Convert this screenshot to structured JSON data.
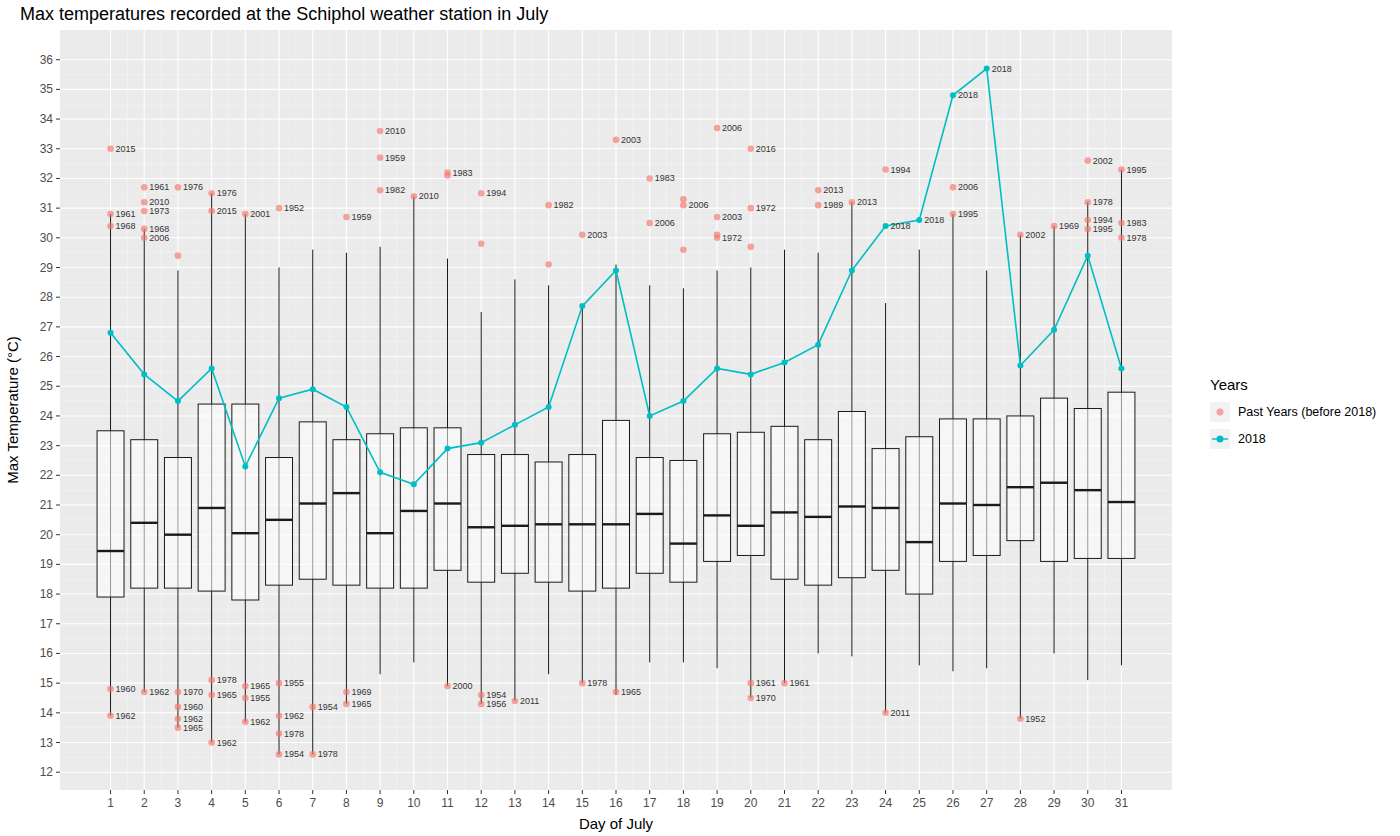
{
  "chart_data": {
    "type": "box",
    "title": "Max temperatures recorded at the Schiphol weather station in July",
    "x_label": "Day of July",
    "y_label": "Max Temperature (°C)",
    "legend_title": "Years",
    "legend": "right",
    "grid": true,
    "x": [
      1,
      2,
      3,
      4,
      5,
      6,
      7,
      8,
      9,
      10,
      11,
      12,
      13,
      14,
      15,
      16,
      17,
      18,
      19,
      20,
      21,
      22,
      23,
      24,
      25,
      26,
      27,
      28,
      29,
      30,
      31
    ],
    "xlim": [
      -0.5,
      32.5
    ],
    "xticks": [
      1,
      2,
      3,
      4,
      5,
      6,
      7,
      8,
      9,
      10,
      11,
      12,
      13,
      14,
      15,
      16,
      17,
      18,
      19,
      20,
      21,
      22,
      23,
      24,
      25,
      26,
      27,
      28,
      29,
      30,
      31
    ],
    "ylim": [
      11.4,
      37
    ],
    "yticks": [
      12,
      13,
      14,
      15,
      16,
      17,
      18,
      19,
      20,
      21,
      22,
      23,
      24,
      25,
      26,
      27,
      28,
      29,
      30,
      31,
      32,
      33,
      34,
      35,
      36
    ],
    "boxes": {
      "lower": [
        13.9,
        14.7,
        13.5,
        13.0,
        13.7,
        12.6,
        12.6,
        14.3,
        15.3,
        15.7,
        14.9,
        14.3,
        14.4,
        15.3,
        15.0,
        14.6,
        15.7,
        15.7,
        15.5,
        14.5,
        15.0,
        16.0,
        15.9,
        14.0,
        15.6,
        15.4,
        15.5,
        13.8,
        16.0,
        15.1,
        15.6
      ],
      "q1": [
        17.9,
        18.2,
        18.2,
        18.1,
        17.8,
        18.3,
        18.5,
        18.3,
        18.2,
        18.2,
        18.8,
        18.4,
        18.7,
        18.4,
        18.1,
        18.2,
        18.7,
        18.4,
        19.1,
        19.3,
        18.5,
        18.3,
        18.55,
        18.8,
        18.0,
        19.1,
        19.3,
        19.8,
        19.1,
        19.2,
        19.2
      ],
      "median": [
        19.45,
        20.4,
        20.0,
        20.9,
        20.05,
        20.5,
        21.05,
        21.4,
        20.05,
        20.8,
        21.05,
        20.25,
        20.3,
        20.35,
        20.35,
        20.35,
        20.7,
        19.7,
        20.65,
        20.3,
        20.75,
        20.6,
        20.95,
        20.9,
        19.75,
        21.05,
        21.0,
        21.6,
        21.75,
        21.5,
        21.1
      ],
      "q3": [
        23.5,
        23.2,
        22.6,
        24.4,
        24.4,
        22.6,
        23.8,
        23.2,
        23.4,
        23.6,
        23.6,
        22.7,
        22.7,
        22.45,
        22.7,
        23.85,
        22.6,
        22.5,
        23.4,
        23.45,
        23.65,
        23.2,
        24.15,
        22.9,
        23.3,
        23.9,
        23.9,
        24.0,
        24.6,
        24.25,
        24.8
      ],
      "upper": [
        30.8,
        30.3,
        28.9,
        31.5,
        30.8,
        29.0,
        29.6,
        29.5,
        29.7,
        31.4,
        29.3,
        27.5,
        28.6,
        28.4,
        27.7,
        29.1,
        28.4,
        28.3,
        28.9,
        29.0,
        29.6,
        29.5,
        31.2,
        27.8,
        29.6,
        30.8,
        28.9,
        30.1,
        30.4,
        31.2,
        32.3
      ]
    },
    "series": [
      {
        "name": "Past Years (before 2018)",
        "type": "scatter",
        "color": "#f8766d",
        "marker": "circle",
        "x": [
          1,
          1,
          1,
          1,
          1,
          2,
          2,
          2,
          2,
          2,
          2,
          3,
          3,
          3,
          3,
          3,
          3,
          4,
          4,
          4,
          4,
          4,
          5,
          5,
          5,
          5,
          6,
          6,
          6,
          6,
          6,
          7,
          7,
          8,
          8,
          8,
          9,
          9,
          9,
          10,
          11,
          11,
          11,
          12,
          12,
          12,
          12,
          13,
          14,
          14,
          15,
          15,
          16,
          16,
          17,
          17,
          18,
          18,
          18,
          19,
          19,
          19,
          19,
          20,
          20,
          20,
          20,
          20,
          21,
          22,
          22,
          23,
          24,
          24,
          26,
          26,
          28,
          28,
          29,
          30,
          30,
          30,
          30,
          31,
          31,
          31
        ],
        "values": [
          33.0,
          30.8,
          30.4,
          14.8,
          13.9,
          31.7,
          31.2,
          30.9,
          30.3,
          30.0,
          14.7,
          31.7,
          29.4,
          14.7,
          14.2,
          13.8,
          13.5,
          31.5,
          30.9,
          15.1,
          14.6,
          13.0,
          30.8,
          14.9,
          14.5,
          13.7,
          31.0,
          15.0,
          13.9,
          13.3,
          12.6,
          14.2,
          12.6,
          30.7,
          14.7,
          14.3,
          33.6,
          32.7,
          31.6,
          31.4,
          32.2,
          32.1,
          14.9,
          31.5,
          29.8,
          14.6,
          14.3,
          14.4,
          31.1,
          29.1,
          30.1,
          15.0,
          33.3,
          14.7,
          32.0,
          30.5,
          31.3,
          31.1,
          29.6,
          33.7,
          30.7,
          30.1,
          30.0,
          33.0,
          31.0,
          29.7,
          15.0,
          14.5,
          15.0,
          31.6,
          31.1,
          31.2,
          32.3,
          14.0,
          31.7,
          30.8,
          30.1,
          13.8,
          30.4,
          32.6,
          31.2,
          30.6,
          30.3,
          32.3,
          30.5,
          30.0
        ],
        "labels": [
          "2015",
          "1961",
          "1968",
          "1960",
          "1962",
          "1961",
          "2010",
          "1973",
          "1968",
          "2006",
          "1962",
          "1976",
          null,
          "1970",
          "1960",
          "1962",
          "1965",
          "1976",
          "2015",
          "1978",
          "1965",
          "1962",
          "2001",
          "1965",
          "1955",
          "1962",
          "1952",
          "1955",
          "1962",
          "1978",
          "1954",
          "1954",
          "1978",
          "1959",
          "1969",
          "1965",
          "2010",
          "1959",
          "1982",
          "2010",
          "1983",
          null,
          "2000",
          "1994",
          null,
          "1954",
          "1956",
          "2011",
          "1982",
          null,
          "2003",
          "1978",
          "2003",
          "1965",
          "1983",
          "2006",
          null,
          "2006",
          null,
          "2006",
          "2003",
          null,
          "1972",
          "2016",
          "1972",
          null,
          "1961",
          "1970",
          "1961",
          "2013",
          "1989",
          "2013",
          "1994",
          "2011",
          "2006",
          "1995",
          "2002",
          "1952",
          "1969",
          "2002",
          "1978",
          "1994",
          "1995",
          "1995",
          "1983",
          "1978"
        ]
      },
      {
        "name": "2018",
        "type": "line",
        "color": "#00bfc4",
        "marker": "circle",
        "line_style": "solid",
        "values": [
          26.8,
          25.4,
          24.5,
          25.6,
          22.3,
          24.6,
          24.9,
          24.3,
          22.1,
          21.7,
          22.9,
          23.1,
          23.7,
          24.3,
          27.7,
          28.9,
          24.0,
          24.5,
          25.6,
          25.4,
          25.8,
          26.4,
          28.9,
          30.4,
          30.6,
          34.8,
          35.7,
          25.7,
          26.9,
          29.4,
          25.6
        ],
        "labels": [
          null,
          null,
          null,
          null,
          null,
          null,
          null,
          null,
          null,
          null,
          null,
          null,
          null,
          null,
          null,
          null,
          null,
          null,
          null,
          null,
          null,
          null,
          null,
          "2018",
          "2018",
          "2018",
          "2018",
          null,
          null,
          null,
          null
        ]
      }
    ]
  }
}
